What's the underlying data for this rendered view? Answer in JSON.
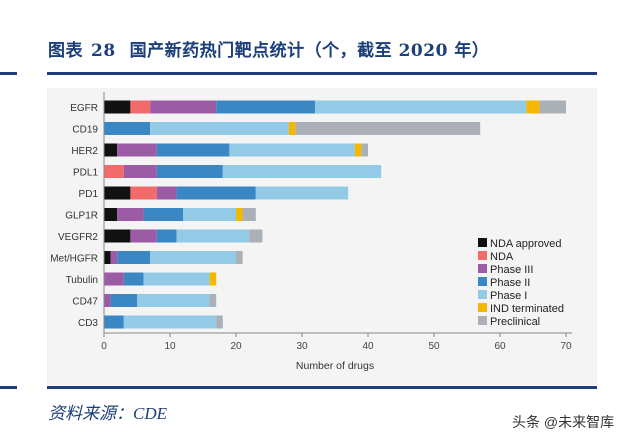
{
  "header": {
    "figure_label": "图表",
    "figure_number": "28",
    "title": "国产新药热门靶点统计（个，截至 2020 年）"
  },
  "footer": {
    "source": "资料来源：CDE",
    "watermark": "头条 @未来智库"
  },
  "chart_data": {
    "type": "bar",
    "orientation": "horizontal",
    "stacked": true,
    "title": "",
    "xlabel": "Number of drugs",
    "ylabel": "",
    "xlim": [
      0,
      70
    ],
    "xticks": [
      0,
      10,
      20,
      30,
      40,
      50,
      60,
      70
    ],
    "grid": false,
    "legend_position": "bottom-right",
    "categories": [
      "EGFR",
      "CD19",
      "HER2",
      "PDL1",
      "PD1",
      "GLP1R",
      "VEGFR2",
      "Met/HGFR",
      "Tubulin",
      "CD47",
      "CD3"
    ],
    "series": [
      {
        "name": "NDA approved",
        "color": "#111111",
        "values": [
          4,
          0,
          2,
          0,
          4,
          2,
          4,
          1,
          0,
          0,
          0
        ]
      },
      {
        "name": "NDA",
        "color": "#f26b6b",
        "values": [
          3,
          0,
          0,
          3,
          4,
          0,
          0,
          0,
          0,
          0,
          0
        ]
      },
      {
        "name": "Phase III",
        "color": "#9b5ba5",
        "values": [
          10,
          0,
          6,
          5,
          3,
          4,
          4,
          1,
          3,
          1,
          0
        ]
      },
      {
        "name": "Phase II",
        "color": "#3a87c4",
        "values": [
          15,
          7,
          11,
          10,
          12,
          6,
          3,
          5,
          3,
          4,
          3
        ]
      },
      {
        "name": "Phase I",
        "color": "#93cbe6",
        "values": [
          32,
          21,
          19,
          24,
          14,
          8,
          11,
          13,
          10,
          11,
          14
        ]
      },
      {
        "name": "IND terminated",
        "color": "#f5b800",
        "values": [
          2,
          1,
          1,
          0,
          0,
          1,
          0,
          0,
          1,
          0,
          0
        ]
      },
      {
        "name": "Preclinical",
        "color": "#aab0b5",
        "values": [
          4,
          28,
          1,
          0,
          0,
          2,
          2,
          1,
          0,
          1,
          1
        ]
      }
    ]
  }
}
